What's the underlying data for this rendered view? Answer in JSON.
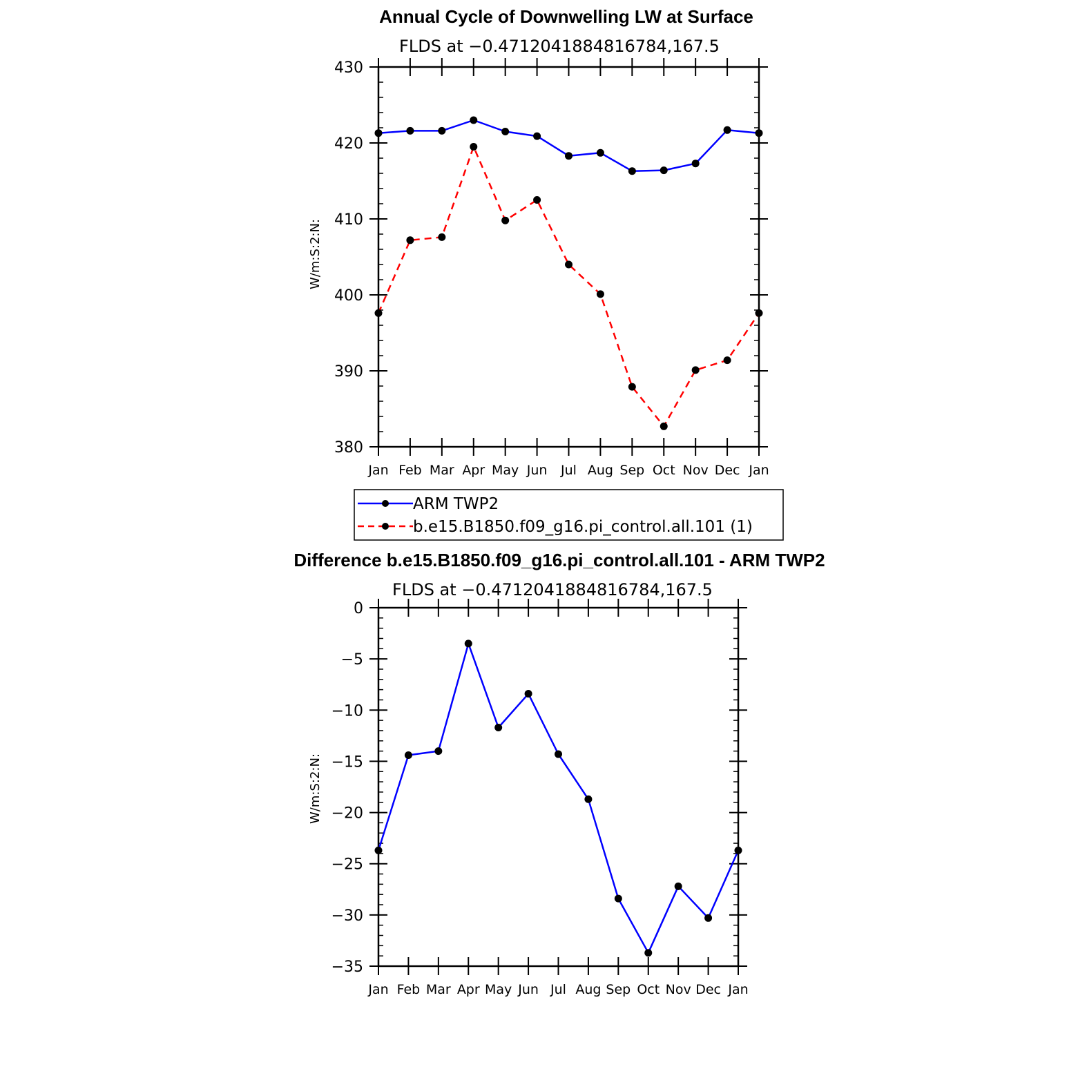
{
  "chart_data": [
    {
      "type": "line",
      "title": "Annual Cycle of Downwelling LW at Surface",
      "subtitle": "FLDS at −0.4712041884816784,167.5",
      "ylabel": "W/m:S:2:N:",
      "xlabel": "",
      "ylim": [
        380,
        430
      ],
      "yticks": [
        "380",
        "390",
        "400",
        "410",
        "420",
        "430"
      ],
      "categories": [
        "Jan",
        "Feb",
        "Mar",
        "Apr",
        "May",
        "Jun",
        "Jul",
        "Aug",
        "Sep",
        "Oct",
        "Nov",
        "Dec",
        "Jan"
      ],
      "series": [
        {
          "name": "ARM TWP2",
          "color": "#0000ff",
          "dash": "solid",
          "values": [
            421.3,
            421.6,
            421.6,
            423.0,
            421.5,
            420.9,
            418.3,
            418.7,
            416.3,
            416.4,
            417.3,
            421.7,
            421.3
          ]
        },
        {
          "name": "b.e15.B1850.f09_g16.pi_control.all.101 (1)",
          "color": "#ff0000",
          "dash": "dashed",
          "values": [
            397.6,
            407.2,
            407.6,
            419.5,
            409.8,
            412.5,
            404.0,
            400.1,
            387.9,
            382.7,
            390.1,
            391.4,
            397.6
          ]
        }
      ],
      "legend": "below"
    },
    {
      "type": "line",
      "title": "Difference b.e15.B1850.f09_g16.pi_control.all.101 - ARM TWP2",
      "subtitle": "FLDS at −0.4712041884816784,167.5",
      "ylabel": "W/m:S:2:N:",
      "xlabel": "",
      "ylim": [
        -35,
        0
      ],
      "yticks": [
        "0",
        "−5",
        "−10",
        "−15",
        "−20",
        "−25",
        "−30",
        "−35"
      ],
      "categories": [
        "Jan",
        "Feb",
        "Mar",
        "Apr",
        "May",
        "Jun",
        "Jul",
        "Aug",
        "Sep",
        "Oct",
        "Nov",
        "Dec",
        "Jan"
      ],
      "series": [
        {
          "name": "Difference",
          "color": "#0000ff",
          "dash": "solid",
          "values": [
            -23.7,
            -14.4,
            -14.0,
            -3.5,
            -11.7,
            -8.4,
            -14.3,
            -18.7,
            -28.4,
            -33.7,
            -27.2,
            -30.3,
            -23.7
          ]
        }
      ]
    }
  ]
}
